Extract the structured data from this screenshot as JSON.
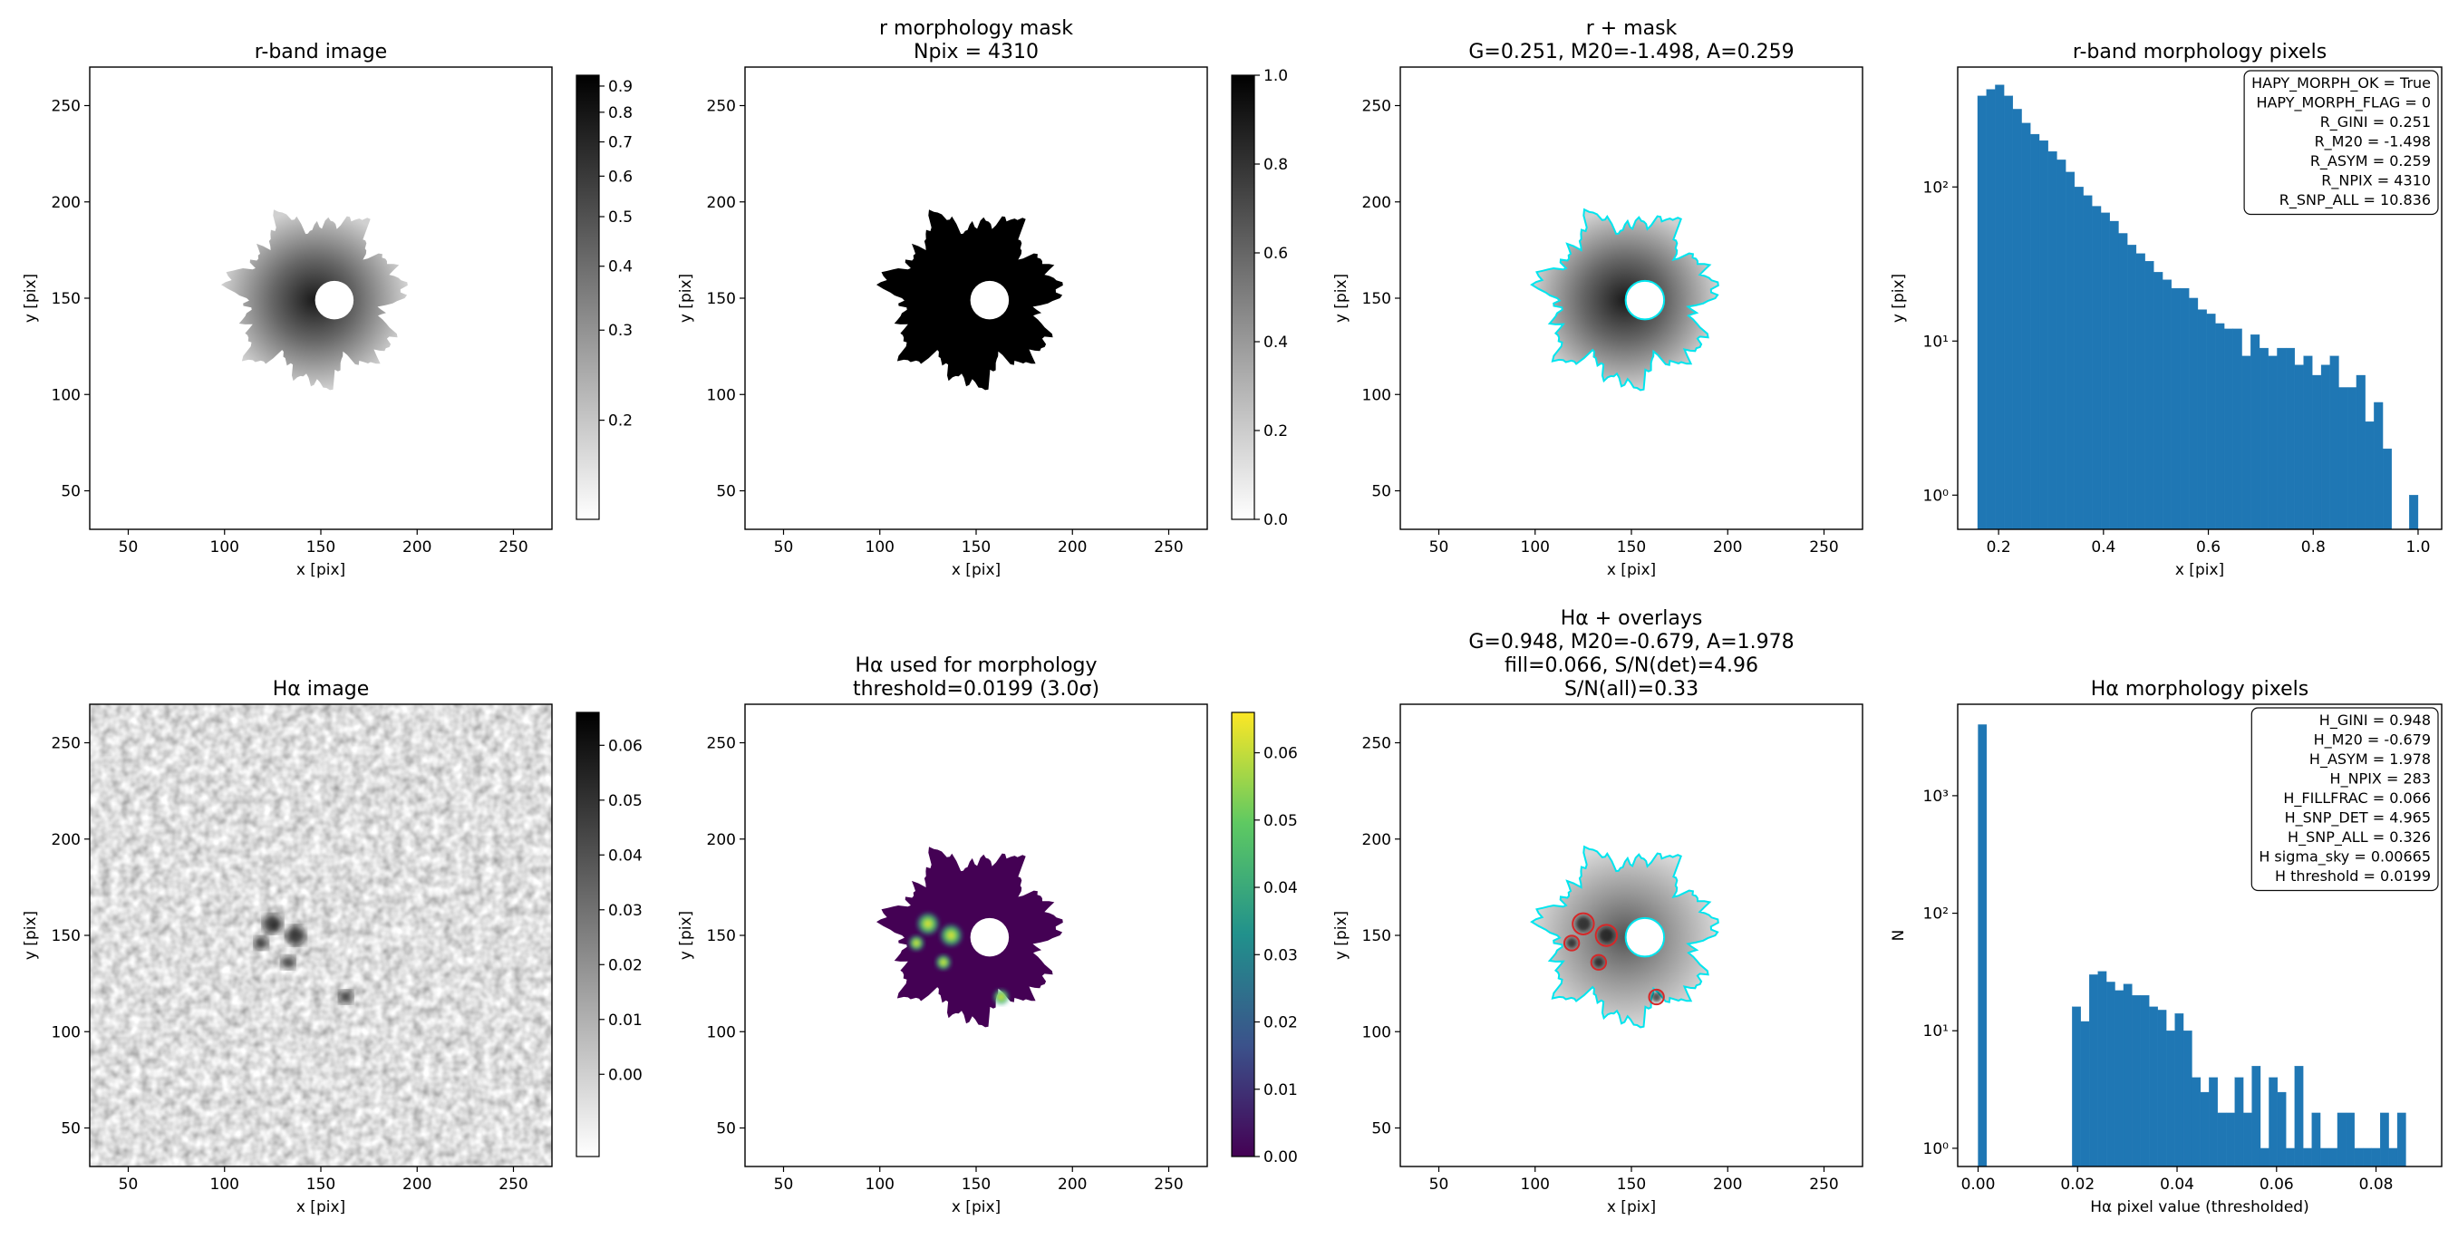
{
  "chart_data": [
    {
      "type": "image",
      "title": "r-band image",
      "xlabel": "x [pix]",
      "ylabel": "y [pix]",
      "xlim": [
        30,
        270
      ],
      "ylim": [
        30,
        270
      ],
      "xticks": [
        50,
        100,
        150,
        200,
        250
      ],
      "yticks": [
        50,
        100,
        150,
        200,
        250
      ],
      "cmap": "gray_r",
      "cscale": "log",
      "clim": [
        0.128,
        0.945
      ],
      "cticks": [
        0.2,
        0.3,
        0.4,
        0.5,
        0.6,
        0.7,
        0.8,
        0.9
      ]
    },
    {
      "type": "image",
      "title": "r morphology mask",
      "subtitle": [
        "Npix = 4310"
      ],
      "xlabel": "x [pix]",
      "ylabel": "y [pix]",
      "xlim": [
        30,
        270
      ],
      "ylim": [
        30,
        270
      ],
      "xticks": [
        50,
        100,
        150,
        200,
        250
      ],
      "yticks": [
        50,
        100,
        150,
        200,
        250
      ],
      "cmap": "gray_r",
      "cscale": "linear",
      "clim": [
        0,
        1
      ],
      "cticks": [
        {
          "value": 0,
          "label": "0.0"
        },
        0.2,
        0.4,
        0.6,
        0.8,
        {
          "value": 1,
          "label": "1.0"
        }
      ]
    },
    {
      "type": "image",
      "title": "r + mask",
      "subtitle": [
        "G=0.251, M20=-1.498, A=0.259"
      ],
      "xlabel": "x [pix]",
      "ylabel": "y [pix]",
      "xlim": [
        30,
        270
      ],
      "ylim": [
        30,
        270
      ],
      "xticks": [
        50,
        100,
        150,
        200,
        250
      ],
      "yticks": [
        50,
        100,
        150,
        200,
        250
      ]
    },
    {
      "type": "histogram",
      "title": "r-band morphology pixels",
      "xlabel": "x [pix]",
      "ylabel": "y [pix]",
      "color": "#1f77b4",
      "bins": [
        0.16,
        0.1768,
        0.1936,
        0.2104,
        0.2272,
        0.244,
        0.2608,
        0.2776,
        0.2944,
        0.3112,
        0.328,
        0.3448,
        0.3616,
        0.3784,
        0.3952,
        0.412,
        0.4288,
        0.4456,
        0.4624,
        0.4792,
        0.496,
        0.5128,
        0.5296,
        0.5464,
        0.5632,
        0.58,
        0.5968,
        0.6136,
        0.6304,
        0.6472,
        0.664,
        0.6808,
        0.6976,
        0.7144,
        0.7312,
        0.748,
        0.7648,
        0.7816,
        0.7984,
        0.8152,
        0.832,
        0.8488,
        0.8656,
        0.8824,
        0.8992,
        0.916,
        0.9328,
        0.9496,
        0.9664,
        0.9832,
        1.0
      ],
      "values": [
        390,
        430,
        460,
        390,
        320,
        260,
        220,
        200,
        170,
        150,
        125,
        100,
        88,
        75,
        68,
        60,
        50,
        42,
        37,
        33,
        28,
        25,
        22,
        22,
        19,
        16,
        15,
        13,
        12,
        12,
        8,
        11,
        9,
        8,
        9,
        9,
        7,
        8,
        6,
        7,
        8,
        5,
        5,
        6,
        3,
        4,
        2,
        0,
        0,
        1
      ],
      "xlim": [
        0.122,
        1.045
      ],
      "ylim": [
        0.6,
        600
      ],
      "yscale": "log",
      "xticks": [
        0.2,
        0.4,
        0.6,
        0.8,
        {
          "value": 1,
          "label": "1.0"
        }
      ],
      "yticks": [
        {
          "value": 1,
          "label": "10⁰"
        },
        {
          "value": 10,
          "label": "10¹"
        },
        {
          "value": 100,
          "label": "10²"
        }
      ],
      "annotation": [
        "HAPY_MORPH_OK = True",
        "HAPY_MORPH_FLAG = 0",
        "R_GINI = 0.251",
        "R_M20 = -1.498",
        "R_ASYM = 0.259",
        "R_NPIX = 4310",
        "R_SNP_ALL = 10.836"
      ]
    },
    {
      "type": "image",
      "title": "Hα image",
      "xlabel": "x [pix]",
      "ylabel": "y [pix]",
      "xlim": [
        30,
        270
      ],
      "ylim": [
        30,
        270
      ],
      "xticks": [
        50,
        100,
        150,
        200,
        250
      ],
      "yticks": [
        50,
        100,
        150,
        200,
        250
      ],
      "cmap": "gray_r",
      "cscale": "linear",
      "clim": [
        -0.015,
        0.066
      ],
      "cticks": [
        {
          "value": 0,
          "label": "0.00"
        },
        0.01,
        0.02,
        0.03,
        0.04,
        0.05,
        0.06
      ]
    },
    {
      "type": "image",
      "title": "Hα used for morphology",
      "subtitle": [
        "threshold=0.0199 (3.0σ)"
      ],
      "xlabel": "x [pix]",
      "ylabel": "y [pix]",
      "xlim": [
        30,
        270
      ],
      "ylim": [
        30,
        270
      ],
      "xticks": [
        50,
        100,
        150,
        200,
        250
      ],
      "yticks": [
        50,
        100,
        150,
        200,
        250
      ],
      "cmap": "viridis",
      "cscale": "linear",
      "clim": [
        0,
        0.066
      ],
      "cticks": [
        {
          "value": 0,
          "label": "0.00"
        },
        0.01,
        0.02,
        0.03,
        0.04,
        0.05,
        0.06
      ]
    },
    {
      "type": "image",
      "title": "Hα + overlays",
      "subtitle": [
        "G=0.948, M20=-0.679, A=1.978",
        "fill=0.066, S/N(det)=4.96",
        "S/N(all)=0.33"
      ],
      "xlabel": "x [pix]",
      "ylabel": "y [pix]",
      "xlim": [
        30,
        270
      ],
      "ylim": [
        30,
        270
      ],
      "xticks": [
        50,
        100,
        150,
        200,
        250
      ],
      "yticks": [
        50,
        100,
        150,
        200,
        250
      ]
    },
    {
      "type": "histogram",
      "title": "Hα morphology pixels",
      "xlabel": "Hα pixel value (thresholded)",
      "ylabel": "N",
      "color": "#1f77b4",
      "bins": [
        0,
        0.00172,
        0.00344,
        0.00516,
        0.00688,
        0.0086,
        0.01032,
        0.01204,
        0.01376,
        0.01548,
        0.0172,
        0.01892,
        0.02064,
        0.02236,
        0.02408,
        0.0258,
        0.02752,
        0.02924,
        0.03096,
        0.03268,
        0.0344,
        0.03612,
        0.03784,
        0.03956,
        0.04128,
        0.043,
        0.04472,
        0.04644,
        0.04816,
        0.04988,
        0.0516,
        0.05332,
        0.05504,
        0.05676,
        0.05848,
        0.0602,
        0.06192,
        0.06364,
        0.06536,
        0.06708,
        0.0688,
        0.07052,
        0.07224,
        0.07396,
        0.07568,
        0.0774,
        0.07912,
        0.08084,
        0.08256,
        0.08428,
        0.086
      ],
      "values": [
        4027,
        0,
        0,
        0,
        0,
        0,
        0,
        0,
        0,
        0,
        0,
        16,
        12,
        30,
        32,
        26,
        22,
        25,
        20,
        20,
        16,
        15,
        10,
        14,
        10,
        4,
        3,
        4,
        2,
        2,
        4,
        2,
        5,
        1,
        4,
        3,
        1,
        5,
        1,
        2,
        1,
        1,
        2,
        2,
        1,
        1,
        1,
        2,
        1,
        2
      ],
      "xlim": [
        -0.0041,
        0.0932
      ],
      "ylim": [
        0.7,
        6000
      ],
      "yscale": "log",
      "xticks": [
        {
          "value": 0,
          "label": "0.00"
        },
        0.02,
        0.04,
        0.06,
        0.08
      ],
      "yticks": [
        {
          "value": 1,
          "label": "10⁰"
        },
        {
          "value": 10,
          "label": "10¹"
        },
        {
          "value": 100,
          "label": "10²"
        },
        {
          "value": 1000,
          "label": "10³"
        }
      ],
      "annotation": [
        "H_GINI = 0.948",
        "H_M20 = -0.679",
        "H_ASYM = 1.978",
        "H_NPIX = 283",
        "H_FILLFRAC = 0.066",
        "H_SNP_DET = 4.965",
        "H_SNP_ALL = 0.326",
        "H sigma_sky = 0.00665",
        "H threshold = 0.0199"
      ]
    }
  ]
}
